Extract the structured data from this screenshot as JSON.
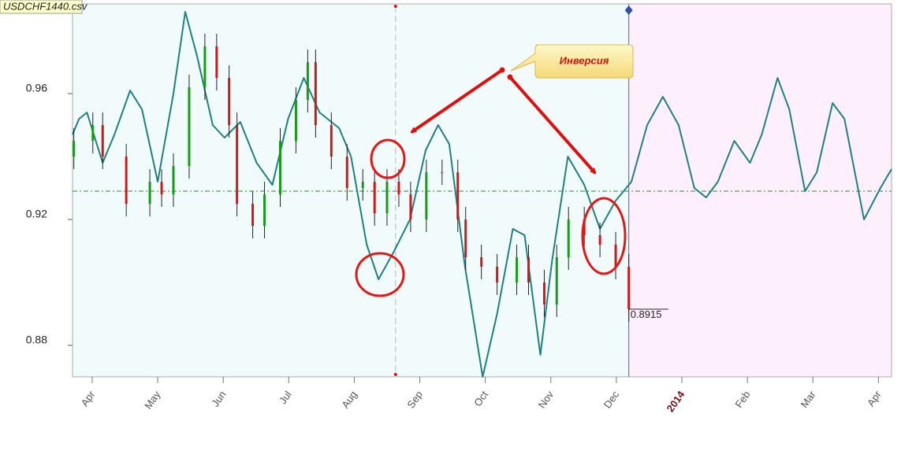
{
  "chart_data": {
    "type": "candlestick",
    "title": "USDCHF1440.csv",
    "annotation": "Инверсия",
    "x": [
      0.72,
      1.01,
      1.16,
      1.52,
      1.88,
      2.06,
      2.24,
      2.48,
      2.72,
      2.9,
      3.09,
      3.21,
      3.45,
      3.63,
      3.87,
      4.11,
      4.29,
      4.41,
      4.65,
      4.89,
      5.13,
      5.31,
      5.5,
      5.68,
      5.86,
      6.1,
      6.34,
      6.58,
      6.7,
      6.94,
      7.18,
      7.48,
      7.66,
      7.9,
      8.09,
      8.27,
      8.51,
      8.75,
      8.99,
      9.19
    ],
    "open": [
      0.94,
      0.945,
      0.95,
      0.94,
      0.925,
      0.932,
      0.928,
      0.937,
      0.962,
      0.975,
      0.965,
      0.95,
      0.925,
      0.918,
      0.928,
      0.945,
      0.958,
      0.97,
      0.95,
      0.94,
      0.93,
      0.932,
      0.922,
      0.932,
      0.928,
      0.92,
      0.935,
      0.935,
      0.92,
      0.908,
      0.905,
      0.9,
      0.908,
      0.9,
      0.893,
      0.908,
      0.92,
      0.915,
      0.912,
      0.905
    ],
    "high": [
      0.949,
      0.954,
      0.954,
      0.944,
      0.936,
      0.936,
      0.941,
      0.966,
      0.979,
      0.979,
      0.969,
      0.954,
      0.929,
      0.932,
      0.949,
      0.962,
      0.974,
      0.974,
      0.954,
      0.944,
      0.936,
      0.936,
      0.936,
      0.936,
      0.932,
      0.939,
      0.939,
      0.939,
      0.924,
      0.912,
      0.909,
      0.912,
      0.912,
      0.904,
      0.912,
      0.924,
      0.924,
      0.919,
      0.916,
      0.909
    ],
    "low": [
      0.936,
      0.941,
      0.936,
      0.921,
      0.921,
      0.924,
      0.924,
      0.933,
      0.958,
      0.961,
      0.946,
      0.921,
      0.914,
      0.914,
      0.924,
      0.941,
      0.954,
      0.946,
      0.936,
      0.926,
      0.926,
      0.918,
      0.918,
      0.924,
      0.916,
      0.916,
      0.931,
      0.916,
      0.904,
      0.901,
      0.896,
      0.896,
      0.896,
      0.889,
      0.889,
      0.904,
      0.911,
      0.908,
      0.901,
      0.8875
    ],
    "close": [
      0.945,
      0.95,
      0.94,
      0.925,
      0.932,
      0.928,
      0.937,
      0.962,
      0.975,
      0.965,
      0.95,
      0.925,
      0.918,
      0.928,
      0.945,
      0.958,
      0.97,
      0.95,
      0.94,
      0.93,
      0.932,
      0.922,
      0.932,
      0.928,
      0.92,
      0.935,
      0.935,
      0.92,
      0.908,
      0.905,
      0.9,
      0.908,
      0.9,
      0.893,
      0.908,
      0.92,
      0.915,
      0.912,
      0.905,
      0.8915
    ],
    "up_color": "#1a9a1a",
    "down_color": "#cc1a1a",
    "cycle": {
      "color": "#1f8080",
      "x": [
        0.7,
        0.8,
        0.92,
        1.16,
        1.34,
        1.58,
        1.76,
        2.0,
        2.24,
        2.42,
        2.6,
        2.84,
        3.02,
        3.26,
        3.51,
        3.75,
        3.99,
        4.23,
        4.47,
        4.77,
        4.95,
        5.19,
        5.37,
        5.61,
        5.85,
        6.09,
        6.28,
        6.45,
        6.69,
        6.96,
        7.18,
        7.42,
        7.6,
        7.84,
        8.02,
        8.26,
        8.51,
        8.75,
        8.99,
        9.23,
        9.47,
        9.71,
        9.95,
        10.19,
        10.37,
        10.55,
        10.8,
        11.04,
        11.22,
        11.46,
        11.64,
        11.88,
        12.06,
        12.3,
        12.48,
        12.78,
        13.03,
        13.2
      ],
      "values": [
        0.947,
        0.952,
        0.954,
        0.938,
        0.947,
        0.961,
        0.955,
        0.932,
        0.96,
        0.986,
        0.972,
        0.95,
        0.946,
        0.951,
        0.938,
        0.931,
        0.952,
        0.965,
        0.954,
        0.949,
        0.94,
        0.912,
        0.901,
        0.91,
        0.92,
        0.942,
        0.95,
        0.944,
        0.905,
        0.87,
        0.89,
        0.917,
        0.915,
        0.877,
        0.907,
        0.94,
        0.931,
        0.917,
        0.926,
        0.932,
        0.95,
        0.959,
        0.95,
        0.93,
        0.927,
        0.932,
        0.945,
        0.938,
        0.947,
        0.965,
        0.955,
        0.929,
        0.935,
        0.957,
        0.952,
        0.92,
        0.93,
        0.936
      ]
    },
    "level": 0.929,
    "forecast_start": 9.19,
    "marker_x": 5.63,
    "xlim": [
      0.7,
      13.2
    ],
    "ylim": [
      0.87,
      0.9885
    ],
    "xticks": [
      {
        "value": 1,
        "label": "Apr"
      },
      {
        "value": 2,
        "label": "May"
      },
      {
        "value": 3,
        "label": "Jun"
      },
      {
        "value": 4,
        "label": "Jul"
      },
      {
        "value": 5,
        "label": "Aug"
      },
      {
        "value": 6,
        "label": "Sep"
      },
      {
        "value": 7,
        "label": "Oct"
      },
      {
        "value": 8,
        "label": "Nov"
      },
      {
        "value": 9,
        "label": "Dec"
      },
      {
        "value": 10,
        "label": "2014"
      },
      {
        "value": 11,
        "label": "Feb"
      },
      {
        "value": 12,
        "label": "Mar"
      },
      {
        "value": 13,
        "label": "Apr"
      }
    ],
    "yticks": [
      0.88,
      0.92,
      0.96
    ]
  }
}
